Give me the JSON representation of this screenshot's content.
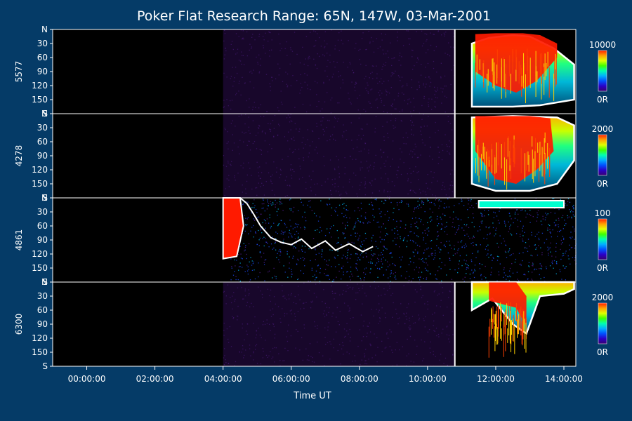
{
  "title": "Poker Flat Research Range: 65N, 147W, 03-Mar-2001",
  "xlabel": "Time UT",
  "x_ticks": [
    "00:00:00",
    "02:00:00",
    "04:00:00",
    "06:00:00",
    "08:00:00",
    "10:00:00",
    "12:00:00",
    "14:00:00"
  ],
  "y_ticks": [
    "N",
    "30",
    "60",
    "90",
    "120",
    "150",
    "S"
  ],
  "colors": {
    "background": "#053b67",
    "plot": "#000000",
    "text": "#ffffff",
    "contour": "#ffffff"
  },
  "chart_data": {
    "type": "heatmap",
    "title": "Poker Flat Research Range: 65N, 147W, 03-Mar-2001",
    "xlabel": "Time UT",
    "x_ticks": [
      "00:00:00",
      "02:00:00",
      "04:00:00",
      "06:00:00",
      "08:00:00",
      "10:00:00",
      "12:00:00",
      "14:00:00"
    ],
    "y_ticks": [
      "N",
      "30",
      "60",
      "90",
      "120",
      "150",
      "S"
    ],
    "xlim_hours": [
      -1.0,
      14.35
    ],
    "panels": [
      {
        "ylabel": "5577",
        "colorbar": {
          "max": "10000",
          "min": "0R"
        },
        "shape": "top",
        "onset": 10.8,
        "end": 14.35,
        "region_top": [
          [
            11.3,
            30
          ],
          [
            11.8,
            18
          ],
          [
            12.5,
            12
          ],
          [
            13.0,
            15
          ],
          [
            13.7,
            40
          ],
          [
            14.3,
            75
          ]
        ],
        "region_bottom": [
          [
            11.3,
            165
          ],
          [
            12.5,
            165
          ],
          [
            13.3,
            162
          ],
          [
            14.3,
            150
          ]
        ],
        "hot_top": [
          [
            11.4,
            10
          ],
          [
            12.0,
            8
          ],
          [
            12.8,
            8
          ],
          [
            13.3,
            12
          ],
          [
            13.8,
            30
          ]
        ],
        "hot_bottom": [
          [
            11.4,
            90
          ],
          [
            12.0,
            120
          ],
          [
            12.6,
            135
          ],
          [
            13.2,
            110
          ],
          [
            13.8,
            60
          ]
        ]
      },
      {
        "ylabel": "4278",
        "colorbar": {
          "max": "2000",
          "min": "0R"
        },
        "shape": "top",
        "onset": 10.8,
        "end": 14.35,
        "region_top": [
          [
            11.3,
            8
          ],
          [
            12.5,
            5
          ],
          [
            13.8,
            8
          ],
          [
            14.3,
            25
          ]
        ],
        "region_bottom": [
          [
            11.3,
            150
          ],
          [
            12.0,
            165
          ],
          [
            13.0,
            165
          ],
          [
            13.8,
            150
          ],
          [
            14.3,
            100
          ]
        ],
        "hot_top": [
          [
            11.4,
            5
          ],
          [
            12.2,
            5
          ],
          [
            13.0,
            5
          ],
          [
            13.6,
            10
          ]
        ],
        "hot_bottom": [
          [
            11.4,
            80
          ],
          [
            12.0,
            140
          ],
          [
            12.6,
            150
          ],
          [
            13.2,
            120
          ],
          [
            13.7,
            80
          ]
        ]
      },
      {
        "ylabel": "4861",
        "colorbar": {
          "max": "100",
          "min": "0R"
        },
        "shape": "hbeta",
        "onset": 4.0,
        "end": 14.35,
        "hot_region": [
          [
            4.0,
            0
          ],
          [
            4.5,
            0
          ],
          [
            4.6,
            60
          ],
          [
            4.4,
            125
          ],
          [
            4.0,
            130
          ]
        ],
        "noise_band": [
          [
            4.0,
            8.5
          ],
          [
            8.5,
            14.35
          ]
        ]
      },
      {
        "ylabel": "6300",
        "colorbar": {
          "max": "2000",
          "min": "0R"
        },
        "shape": "top",
        "onset": 10.8,
        "end": 14.35,
        "region_top": [
          [
            11.3,
            0
          ],
          [
            12.5,
            0
          ],
          [
            13.5,
            0
          ],
          [
            14.3,
            0
          ]
        ],
        "region_bottom": [
          [
            11.3,
            60
          ],
          [
            11.9,
            35
          ],
          [
            12.5,
            90
          ],
          [
            12.9,
            110
          ],
          [
            13.3,
            30
          ],
          [
            14.0,
            25
          ],
          [
            14.3,
            15
          ]
        ],
        "hot_top": [
          [
            11.8,
            0
          ],
          [
            12.6,
            0
          ],
          [
            12.9,
            30
          ]
        ],
        "hot_bottom": [
          [
            11.8,
            40
          ],
          [
            12.6,
            55
          ],
          [
            12.9,
            95
          ]
        ]
      }
    ]
  }
}
